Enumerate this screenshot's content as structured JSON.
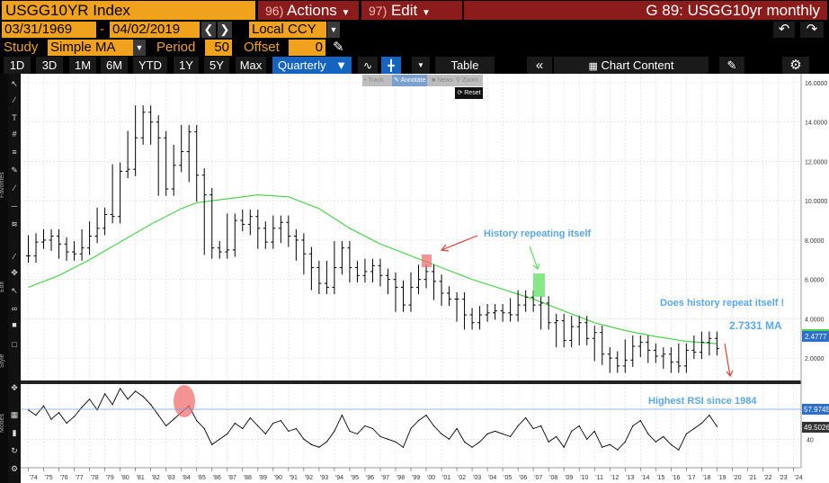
{
  "header": {
    "ticker": "USGG10YR Index",
    "actions_num": "96)",
    "actions_label": "Actions",
    "edit_num": "97)",
    "edit_label": "Edit",
    "chart_title": "G 89: USGG10yr monthly"
  },
  "options": {
    "start_date": "03/31/1969",
    "date_sep": "-",
    "end_date": "04/02/2019",
    "currency": "Local CCY",
    "study_label": "Study",
    "study_value": "Simple MA",
    "period_label": "Period",
    "period_value": "50",
    "offset_label": "Offset",
    "offset_value": "0"
  },
  "toolbar": {
    "periods": [
      "1D",
      "3D",
      "1M",
      "6M",
      "YTD",
      "1Y",
      "5Y",
      "Max"
    ],
    "frequency": "Quarterly",
    "table_label": "Table",
    "chart_content_label": "Chart Content"
  },
  "mini_toolbar": {
    "track": "Track",
    "annotate": "Annotate",
    "news": "News",
    "zoom": "Zoom",
    "reset": "Reset"
  },
  "side_labels": {
    "favorites": "Favorites",
    "edit": "Edit",
    "style": "Style",
    "modes": "Modes"
  },
  "colors": {
    "orange": "#f1a21c",
    "maroon": "#8c1b1b",
    "ma_line": "#4cd44c",
    "price": "#000000",
    "annotation_text": "#5aa8e6",
    "arrow": "#e0443a",
    "highlight_red": "#f07070",
    "highlight_green": "#5ee05e",
    "last_value_blue": "#2f6fcc",
    "ma_value_green": "#4cd44c"
  },
  "chart_data": [
    {
      "type": "bar",
      "series": [
        {
          "name": "USGG10YR Index",
          "x": [
            1974.0,
            1974.5,
            1975.0,
            1975.5,
            1976.0,
            1976.5,
            1977.0,
            1977.5,
            1978.0,
            1978.5,
            1979.0,
            1979.5,
            1980.0,
            1980.5,
            1981.0,
            1981.5,
            1982.0,
            1982.5,
            1983.0,
            1983.5,
            1984.0,
            1984.5,
            1985.0,
            1985.5,
            1986.0,
            1986.5,
            1987.0,
            1987.5,
            1988.0,
            1988.5,
            1989.0,
            1989.5,
            1990.0,
            1990.5,
            1991.0,
            1991.5,
            1992.0,
            1992.5,
            1993.0,
            1993.5,
            1994.0,
            1994.5,
            1995.0,
            1995.5,
            1996.0,
            1996.5,
            1997.0,
            1997.5,
            1998.0,
            1998.5,
            1999.0,
            1999.5,
            2000.0,
            2000.5,
            2001.0,
            2001.5,
            2002.0,
            2002.5,
            2003.0,
            2003.5,
            2004.0,
            2004.5,
            2005.0,
            2005.5,
            2006.0,
            2006.5,
            2007.0,
            2007.5,
            2008.0,
            2008.5,
            2009.0,
            2009.5,
            2010.0,
            2010.5,
            2011.0,
            2011.5,
            2012.0,
            2012.5,
            2013.0,
            2013.5,
            2014.0,
            2014.5,
            2015.0,
            2015.5,
            2016.0,
            2016.5,
            2017.0,
            2017.5,
            2018.0,
            2018.5,
            2019.0
          ],
          "values": [
            7.2,
            7.9,
            8.0,
            8.2,
            7.8,
            7.4,
            7.3,
            7.6,
            8.2,
            8.6,
            9.3,
            9.2,
            11.5,
            11.6,
            13.2,
            14.5,
            14.0,
            13.2,
            10.6,
            11.8,
            12.5,
            13.5,
            11.3,
            10.3,
            7.6,
            7.4,
            7.5,
            9.0,
            8.8,
            9.2,
            8.6,
            7.9,
            8.6,
            8.9,
            8.2,
            8.0,
            7.3,
            6.6,
            5.8,
            5.6,
            6.6,
            7.6,
            6.6,
            6.2,
            6.4,
            6.7,
            6.2,
            6.0,
            5.6,
            4.7,
            5.6,
            6.0,
            6.4,
            5.9,
            5.3,
            5.0,
            5.0,
            4.2,
            3.8,
            4.2,
            4.3,
            4.4,
            4.3,
            4.2,
            4.7,
            5.1,
            4.7,
            4.8,
            3.8,
            3.9,
            2.9,
            3.6,
            3.8,
            3.0,
            3.3,
            2.2,
            2.0,
            1.6,
            1.9,
            2.6,
            2.8,
            2.4,
            2.1,
            2.2,
            1.8,
            1.6,
            2.4,
            2.3,
            2.8,
            3.0,
            2.48
          ]
        },
        {
          "name": "Simple MA 50",
          "x": [
            1974.0,
            1976.0,
            1978.0,
            1980.0,
            1982.0,
            1984.0,
            1985.0,
            1987.0,
            1989.0,
            1991.0,
            1993.0,
            1995.0,
            1997.0,
            1999.0,
            2001.0,
            2003.0,
            2005.0,
            2007.0,
            2009.0,
            2011.0,
            2013.0,
            2015.0,
            2017.0,
            2019.0
          ],
          "values": [
            5.6,
            6.2,
            7.0,
            7.9,
            8.8,
            9.6,
            9.9,
            10.1,
            10.3,
            10.2,
            9.6,
            8.6,
            7.8,
            7.2,
            6.6,
            6.0,
            5.5,
            5.0,
            4.4,
            3.8,
            3.4,
            3.1,
            2.85,
            2.7331
          ]
        }
      ],
      "ylim": [
        1.0,
        16.0
      ],
      "yticks": [
        "16.0000",
        "14.0000",
        "12.0000",
        "10.0000",
        "8.0000",
        "6.0000",
        "4.0000",
        "2.0000"
      ],
      "last_value": "2.4777",
      "ma_value_label": "2.7331  MA",
      "annotations": {
        "history_repeating": "History repeating itself",
        "does_repeat": "Does history repeat itself !"
      },
      "grid": true,
      "legend": "none"
    },
    {
      "type": "line",
      "series": [
        {
          "name": "RSI",
          "x": [
            1974.0,
            1974.5,
            1975.0,
            1975.5,
            1976.0,
            1976.5,
            1977.0,
            1977.5,
            1978.0,
            1978.5,
            1979.0,
            1979.5,
            1980.0,
            1980.5,
            1981.0,
            1981.5,
            1982.0,
            1982.5,
            1983.0,
            1983.5,
            1984.0,
            1984.5,
            1985.0,
            1985.5,
            1986.0,
            1986.5,
            1987.0,
            1987.5,
            1988.0,
            1988.5,
            1989.0,
            1989.5,
            1990.0,
            1990.5,
            1991.0,
            1991.5,
            1992.0,
            1992.5,
            1993.0,
            1993.5,
            1994.0,
            1994.5,
            1995.0,
            1995.5,
            1996.0,
            1996.5,
            1997.0,
            1997.5,
            1998.0,
            1998.5,
            1999.0,
            1999.5,
            2000.0,
            2000.5,
            2001.0,
            2001.5,
            2002.0,
            2002.5,
            2003.0,
            2003.5,
            2004.0,
            2004.5,
            2005.0,
            2005.5,
            2006.0,
            2006.5,
            2007.0,
            2007.5,
            2008.0,
            2008.5,
            2009.0,
            2009.5,
            2010.0,
            2010.5,
            2011.0,
            2011.5,
            2012.0,
            2012.5,
            2013.0,
            2013.5,
            2014.0,
            2014.5,
            2015.0,
            2015.5,
            2016.0,
            2016.5,
            2017.0,
            2017.5,
            2018.0,
            2018.5,
            2019.0
          ],
          "values": [
            62,
            58,
            65,
            55,
            60,
            52,
            57,
            64,
            70,
            62,
            74,
            66,
            78,
            70,
            76,
            72,
            66,
            58,
            50,
            55,
            60,
            65,
            54,
            48,
            36,
            40,
            44,
            52,
            48,
            56,
            50,
            44,
            52,
            54,
            46,
            48,
            40,
            36,
            34,
            38,
            46,
            58,
            46,
            44,
            50,
            48,
            42,
            40,
            38,
            34,
            48,
            54,
            58,
            50,
            44,
            40,
            48,
            38,
            34,
            38,
            44,
            46,
            44,
            42,
            50,
            56,
            48,
            50,
            38,
            42,
            34,
            46,
            50,
            40,
            46,
            34,
            36,
            32,
            38,
            50,
            54,
            44,
            38,
            42,
            36,
            32,
            44,
            48,
            52,
            58,
            49.5
          ]
        }
      ],
      "ylim": [
        20,
        80
      ],
      "yticks": [
        "40"
      ],
      "rsi_level_label": "57.9745",
      "rsi_last_label": "49.5026",
      "annotation": "Highest RSI since 1984",
      "xticks": [
        "'74",
        "'75",
        "'76",
        "'77",
        "'78",
        "'79",
        "'80",
        "'81",
        "'82",
        "'83",
        "'84",
        "'85",
        "'86",
        "'87",
        "'88",
        "'89",
        "'90",
        "'91",
        "'92",
        "'93",
        "'94",
        "'95",
        "'96",
        "'97",
        "'98",
        "'99",
        "'00",
        "'01",
        "'02",
        "'03",
        "'04",
        "'05",
        "'06",
        "'07",
        "'08",
        "'09",
        "'10",
        "'11",
        "'12",
        "'13",
        "'14",
        "'15",
        "'16",
        "'17",
        "'18",
        "'19",
        "'20",
        "'21",
        "'22",
        "'23",
        "'24"
      ]
    }
  ]
}
